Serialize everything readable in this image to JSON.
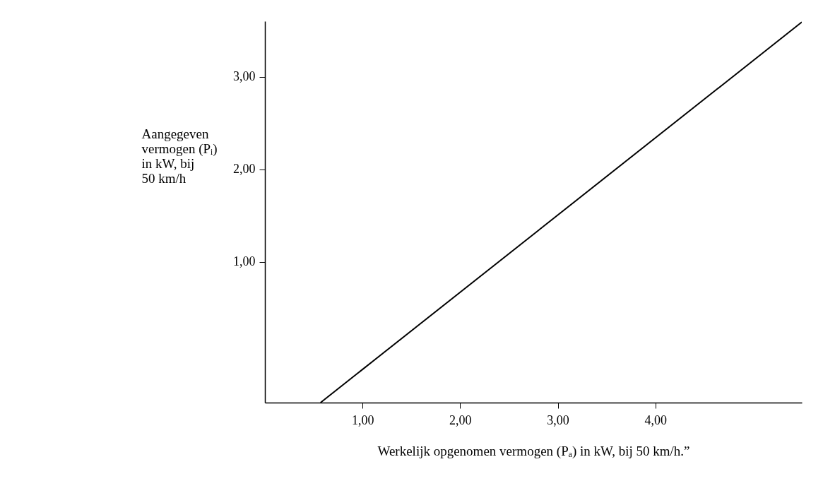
{
  "chart_data": {
    "type": "line",
    "xlabel": "Werkelijk opgenomen vermogen (Pₐ) in kW, bij 50 km/h.”",
    "ylabel": "Aangegeven\nvermogen (Pᵢ)\nin kW, bij\n50 km/h",
    "x": [
      0.57,
      5.5
    ],
    "series": [
      {
        "color": "#000000",
        "values": [
          -0.52,
          3.59
        ]
      }
    ],
    "xlim": [
      0,
      5.5
    ],
    "ylim": [
      -0.52,
      3.6
    ],
    "xticks": [
      {
        "value": 1,
        "label": "1,00"
      },
      {
        "value": 2,
        "label": "2,00"
      },
      {
        "value": 3,
        "label": "3,00"
      },
      {
        "value": 4,
        "label": "4,00"
      }
    ],
    "yticks": [
      {
        "value": 1,
        "label": "1,00"
      },
      {
        "value": 2,
        "label": "2,00"
      },
      {
        "value": 3,
        "label": "3,00"
      }
    ],
    "grid": false,
    "legend": false,
    "marker": "none",
    "line_style": "solid"
  }
}
